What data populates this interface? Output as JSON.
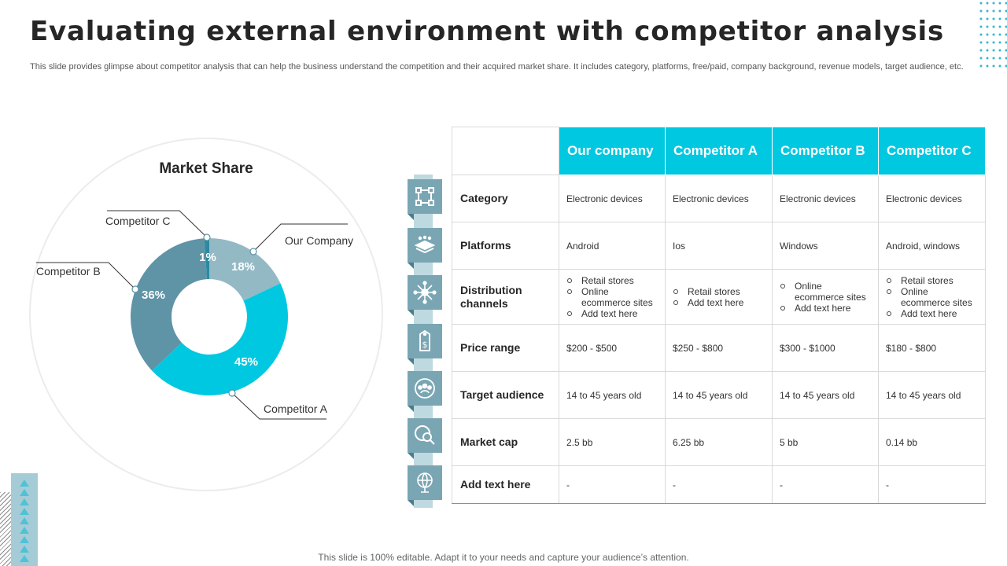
{
  "slide": {
    "title": "Evaluating external environment with competitor analysis",
    "subtitle": "This slide provides glimpse about competitor analysis that can help the business understand the competition and their acquired market share. It includes category, platforms, free/paid, company background, revenue models, target audience, etc.",
    "footer": "This slide is 100% editable. Adapt it to your needs and capture your audience’s attention."
  },
  "chart_data": {
    "type": "pie",
    "title": "Market Share",
    "categories": [
      "Our Company",
      "Competitor A",
      "Competitor B",
      "Competitor C"
    ],
    "values": [
      18,
      45,
      36,
      1
    ],
    "value_labels": [
      "18%",
      "45%",
      "36%",
      "1%"
    ],
    "colors": [
      "#93b9c5",
      "#00c8e0",
      "#5f93a6",
      "#2b8aa2"
    ]
  },
  "table": {
    "columns": [
      "Our company",
      "Competitor A",
      "Competitor B",
      "Competitor C"
    ],
    "rows": [
      {
        "label": "Category",
        "icon": "grid-icon",
        "cells": [
          "Electronic devices",
          "Electronic devices",
          "Electronic devices",
          "Electronic devices"
        ]
      },
      {
        "label": "Platforms",
        "icon": "layers-icon",
        "cells": [
          "Android",
          "Ios",
          "Windows",
          "Android, windows"
        ]
      },
      {
        "label": "Distribution channels",
        "icon": "network-icon",
        "cells": [
          [
            "Retail stores",
            "Online ecommerce sites",
            "Add text here"
          ],
          [
            "Retail stores",
            "Add text here"
          ],
          [
            "Online ecommerce sites",
            "Add text here"
          ],
          [
            "Retail stores",
            "Online ecommerce sites",
            "Add text here"
          ]
        ]
      },
      {
        "label": "Price range",
        "icon": "price-tag-icon",
        "cells": [
          "$200 - $500",
          "$250 - $800",
          "$300 - $1000",
          "$180 - $800"
        ]
      },
      {
        "label": "Target audience",
        "icon": "audience-icon",
        "cells": [
          "14 to 45 years old",
          "14 to 45 years old",
          "14 to 45 years old",
          "14 to 45 years old"
        ]
      },
      {
        "label": "Market cap",
        "icon": "market-search-icon",
        "cells": [
          "2.5 bb",
          "6.25 bb",
          "5 bb",
          "0.14 bb"
        ]
      },
      {
        "label": "Add text here",
        "icon": "globe-icon",
        "cells": [
          "-",
          "-",
          "-",
          "-"
        ]
      }
    ]
  }
}
